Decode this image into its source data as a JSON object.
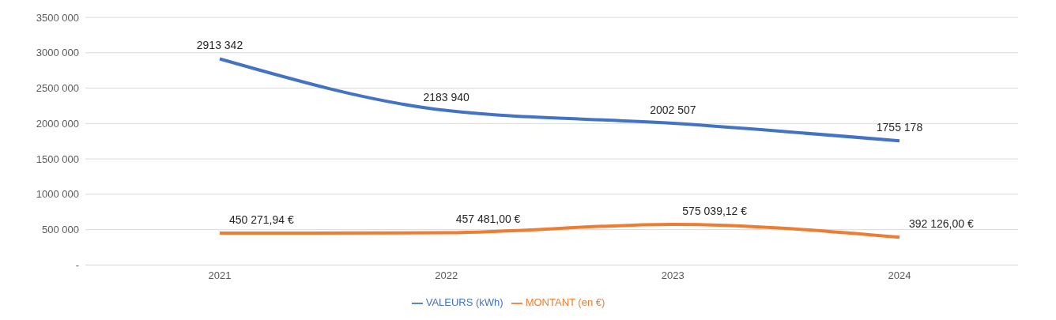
{
  "chart_data": {
    "type": "line",
    "categories": [
      "2021",
      "2022",
      "2023",
      "2024"
    ],
    "series": [
      {
        "name": "VALEURS (kWh)",
        "color": "#4472c4",
        "values": [
          2913342,
          2183940,
          2002507,
          1755178
        ],
        "value_labels": [
          "2913 342",
          "2183 940",
          "2002 507",
          "1755 178"
        ]
      },
      {
        "name": "MONTANT (en €)",
        "color": "#ed7d31",
        "values": [
          450271.94,
          457481.0,
          575039.12,
          392126.0
        ],
        "value_labels": [
          "450 271,94 €",
          "457 481,00 €",
          "575 039,12 €",
          "392 126,00 €"
        ]
      }
    ],
    "ylim": [
      0,
      3500000
    ],
    "yticks": [
      {
        "value": 0,
        "label": "-"
      },
      {
        "value": 500000,
        "label": "500 000"
      },
      {
        "value": 1000000,
        "label": "1000 000"
      },
      {
        "value": 1500000,
        "label": "1500 000"
      },
      {
        "value": 2000000,
        "label": "2000 000"
      },
      {
        "value": 2500000,
        "label": "2500 000"
      },
      {
        "value": 3000000,
        "label": "3000 000"
      },
      {
        "value": 3500000,
        "label": "3500 000"
      }
    ],
    "grid": "y",
    "legend": "bottom",
    "marker": "none",
    "line_style": "solid"
  }
}
